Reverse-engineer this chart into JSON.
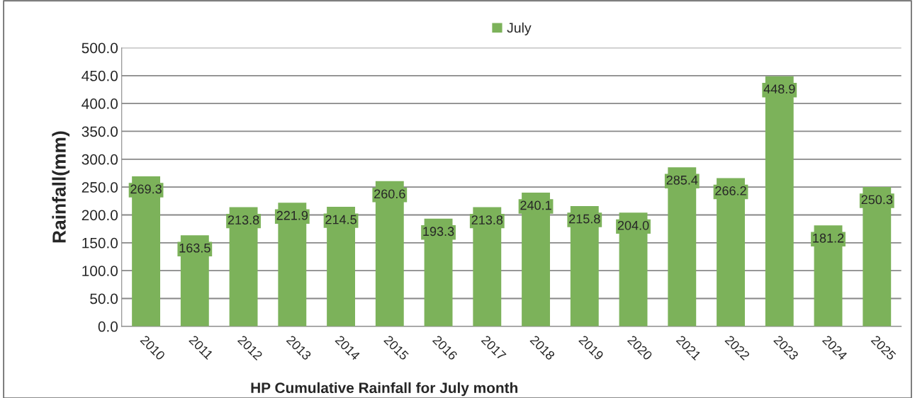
{
  "chart_data": {
    "type": "bar",
    "xlabel": "HP Cumulative Rainfall for July month",
    "ylabel": "Rainfall(mm)",
    "categories": [
      "2010",
      "2011",
      "2012",
      "2013",
      "2014",
      "2015",
      "2016",
      "2017",
      "2018",
      "2019",
      "2020",
      "2021",
      "2022",
      "2023",
      "2024",
      "2025"
    ],
    "series": [
      {
        "name": "July",
        "color": "#7cb25a",
        "values": [
          269.3,
          163.5,
          213.8,
          221.9,
          214.5,
          260.6,
          193.3,
          213.8,
          240.1,
          215.8,
          204.0,
          285.4,
          266.2,
          448.9,
          181.2,
          250.3
        ],
        "value_labels": [
          "269.3",
          "163.5",
          "213.8",
          "221.9",
          "214.5",
          "260.6",
          "193.3",
          "213.8",
          "240.1",
          "215.8",
          "204.0",
          "285.4",
          "266.2",
          "448.9",
          "181.2",
          "250.3"
        ]
      }
    ],
    "ylim": [
      0,
      500
    ],
    "yticks": [
      {
        "value": 0,
        "label": "0.0"
      },
      {
        "value": 50,
        "label": "50.0"
      },
      {
        "value": 100,
        "label": "100.0"
      },
      {
        "value": 150,
        "label": "150.0"
      },
      {
        "value": 200,
        "label": "200.0"
      },
      {
        "value": 250,
        "label": "250.0"
      },
      {
        "value": 300,
        "label": "300.0"
      },
      {
        "value": 350,
        "label": "350.0"
      },
      {
        "value": 400,
        "label": "400.0"
      },
      {
        "value": 450,
        "label": "450.0"
      },
      {
        "value": 500,
        "label": "500.0"
      }
    ],
    "grid": "y",
    "legend": "top"
  }
}
